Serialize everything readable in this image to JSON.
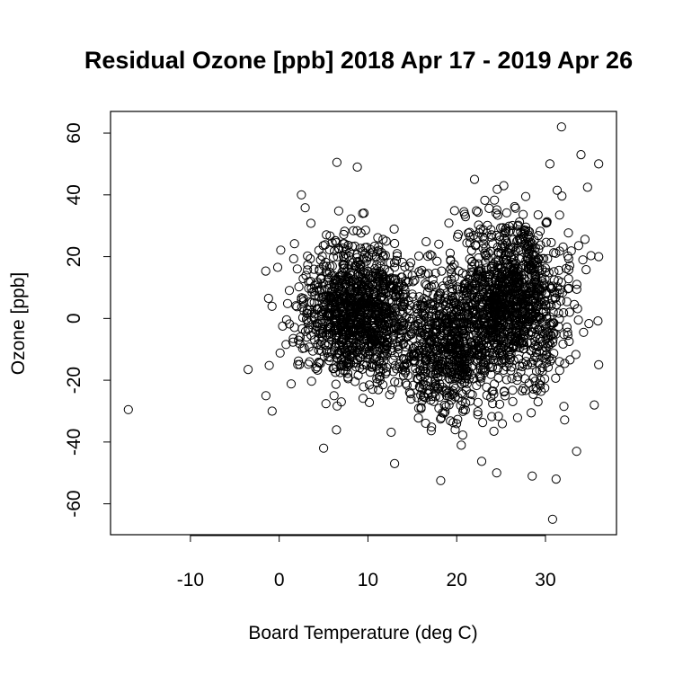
{
  "chart_data": {
    "type": "scatter",
    "title": "Residual Ozone [ppb] 2018 Apr 17 - 2019 Apr 26",
    "xlabel": "Board Temperature (deg C)",
    "ylabel": "Ozone [ppb]",
    "xlim": [
      -19,
      38
    ],
    "ylim": [
      -70,
      67
    ],
    "xticks": [
      -10,
      0,
      10,
      20,
      30
    ],
    "yticks": [
      -60,
      -40,
      -20,
      0,
      20,
      40,
      60
    ],
    "xtick_labels": [
      "-10",
      "0",
      "10",
      "20",
      "30"
    ],
    "ytick_labels": [
      "-60",
      "-40",
      "-20",
      "0",
      "20",
      "40",
      "60"
    ],
    "marker": "open-circle",
    "grid": false,
    "legend": "none",
    "colors": {
      "points": "#000000",
      "background": "#ffffff",
      "axes": "#000000"
    },
    "point_count_estimate": 3000,
    "distribution": {
      "clusters": [
        {
          "x_center": 9,
          "y_center": 2,
          "x_sd": 3.2,
          "y_sd": 11,
          "weight": 0.36
        },
        {
          "x_center": 19,
          "y_center": -10,
          "x_sd": 2.6,
          "y_sd": 11,
          "weight": 0.22
        },
        {
          "x_center": 26,
          "y_center": 5,
          "x_sd": 3.2,
          "y_sd": 13,
          "weight": 0.42
        }
      ]
    },
    "notable_points": [
      {
        "x": -17,
        "y": -29.5
      },
      {
        "x": 31.8,
        "y": 62
      },
      {
        "x": 30.8,
        "y": -65
      },
      {
        "x": 18.2,
        "y": -52.5
      },
      {
        "x": 31.2,
        "y": -52
      },
      {
        "x": 6.5,
        "y": 50.5
      },
      {
        "x": 8.8,
        "y": 49
      },
      {
        "x": 34,
        "y": 53
      },
      {
        "x": 36,
        "y": 50
      },
      {
        "x": 13,
        "y": -47
      },
      {
        "x": 28.5,
        "y": -51
      },
      {
        "x": -3.5,
        "y": -16.5
      },
      {
        "x": -1.5,
        "y": -25
      },
      {
        "x": -1.2,
        "y": 6.5
      },
      {
        "x": -0.8,
        "y": -30
      },
      {
        "x": 2.5,
        "y": 40
      },
      {
        "x": 24.5,
        "y": -50
      },
      {
        "x": 36,
        "y": 20
      },
      {
        "x": 36,
        "y": -15
      },
      {
        "x": 35.5,
        "y": -28
      },
      {
        "x": 5,
        "y": -42
      },
      {
        "x": 22,
        "y": 45
      },
      {
        "x": 30.5,
        "y": 50
      },
      {
        "x": 33.5,
        "y": -43
      }
    ]
  }
}
